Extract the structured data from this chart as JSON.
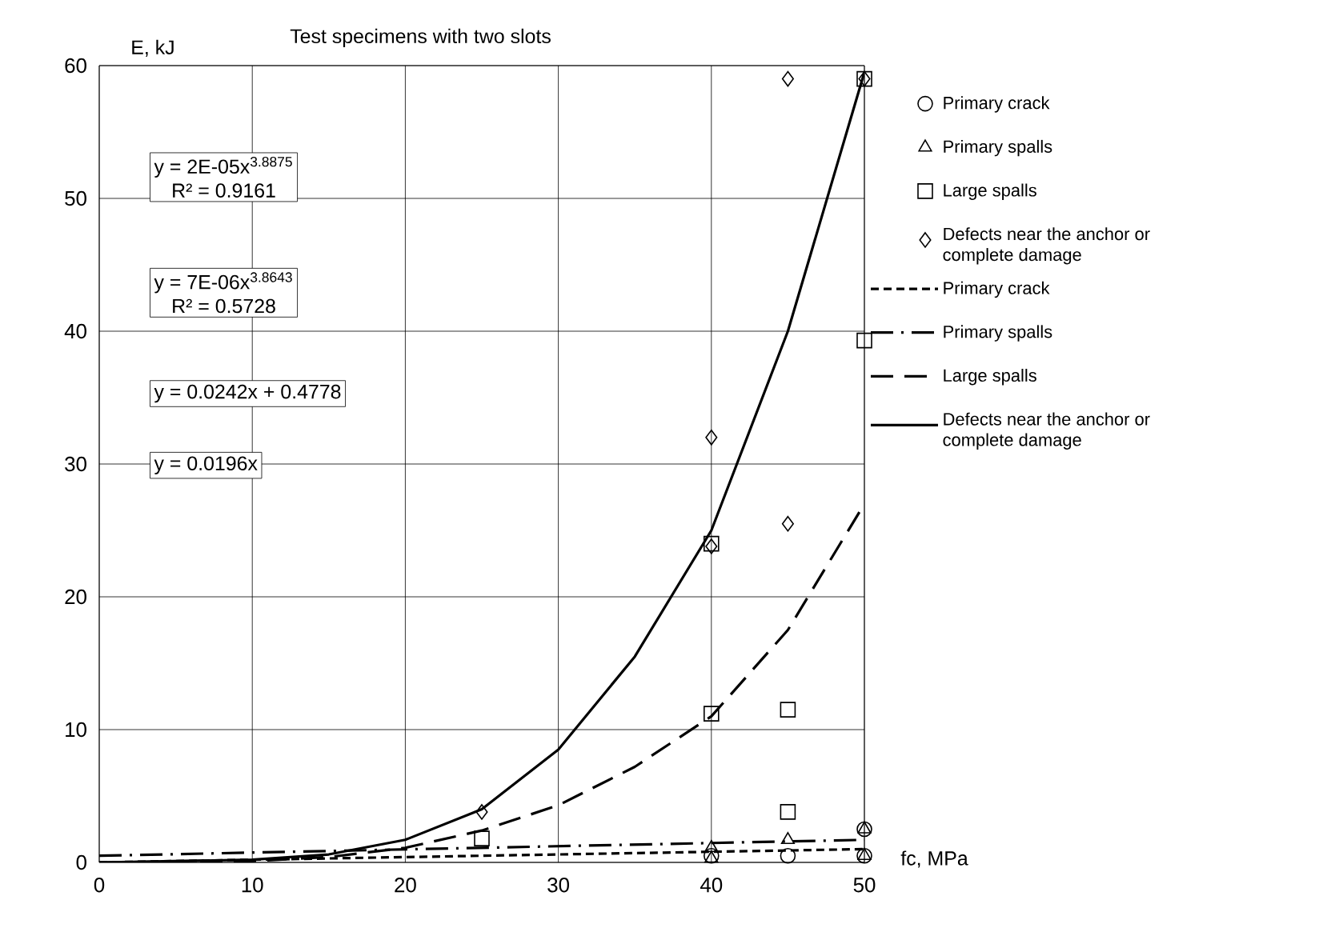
{
  "chart_data": {
    "type": "scatter",
    "title": "Test specimens with two slots",
    "xlabel": "fc, MPa",
    "ylabel": "E, kJ",
    "xlim": [
      0,
      50
    ],
    "ylim": [
      0,
      60
    ],
    "xticks": [
      0,
      10,
      20,
      30,
      40,
      50
    ],
    "yticks": [
      0,
      10,
      20,
      30,
      40,
      50,
      60
    ],
    "grid": true,
    "legend": "right",
    "annotations": [
      "y = 2E-05x$^{3.8875}$",
      "R² = 0.9161",
      "y = 7E-06x$^{3.8643}$",
      "R² = 0.5728",
      "y = 0.0242x + 0.4778",
      "y = 0.0196x"
    ],
    "series": [
      {
        "name": "Primary crack",
        "color": "#000000",
        "marker": "circle",
        "x": [
          40,
          45,
          50,
          50
        ],
        "values": [
          0.5,
          0.5,
          2.5,
          0.5
        ]
      },
      {
        "name": "Primary spalls",
        "color": "#000000",
        "marker": "triangle",
        "x": [
          40,
          40,
          45,
          50,
          50
        ],
        "values": [
          1.1,
          0.3,
          1.7,
          2.5,
          0.5
        ]
      },
      {
        "name": "Large spalls",
        "color": "#000000",
        "marker": "square",
        "x": [
          25,
          40,
          40,
          45,
          45,
          50,
          50
        ],
        "values": [
          1.8,
          24,
          11.2,
          11.5,
          3.8,
          39.3,
          59
        ]
      },
      {
        "name": "Defects near the anchor or complete damage",
        "color": "#000000",
        "marker": "diamond",
        "x": [
          25,
          40,
          40,
          45,
          45,
          50
        ],
        "values": [
          3.8,
          32,
          23.8,
          59,
          25.5,
          59
        ]
      },
      {
        "name": "Primary crack",
        "type": "line",
        "color": "#000000",
        "line_style": "dashed",
        "marker": "none",
        "x": [
          0,
          50
        ],
        "values": [
          0,
          1
        ]
      },
      {
        "name": "Primary spalls",
        "type": "line",
        "color": "#000000",
        "line_style": "dashdot",
        "marker": "none",
        "x": [
          0,
          50
        ],
        "values": [
          0.5,
          1.7
        ]
      },
      {
        "name": "Large spalls",
        "type": "line",
        "color": "#000000",
        "line_style": "longdash",
        "marker": "none",
        "x": [
          0,
          10,
          15,
          20,
          25,
          30,
          35,
          40,
          45,
          50
        ],
        "values": [
          0,
          0.1,
          0.4,
          1.1,
          2.4,
          4.3,
          7.2,
          11,
          17.5,
          27
        ]
      },
      {
        "name": "Defects near the anchor or complete damage",
        "type": "line",
        "color": "#000000",
        "line_style": "solid",
        "marker": "none",
        "x": [
          0,
          10,
          15,
          20,
          25,
          30,
          35,
          40,
          45,
          50
        ],
        "values": [
          0,
          0.2,
          0.6,
          1.7,
          4,
          8.5,
          15.5,
          25,
          40,
          59.5
        ]
      }
    ]
  }
}
